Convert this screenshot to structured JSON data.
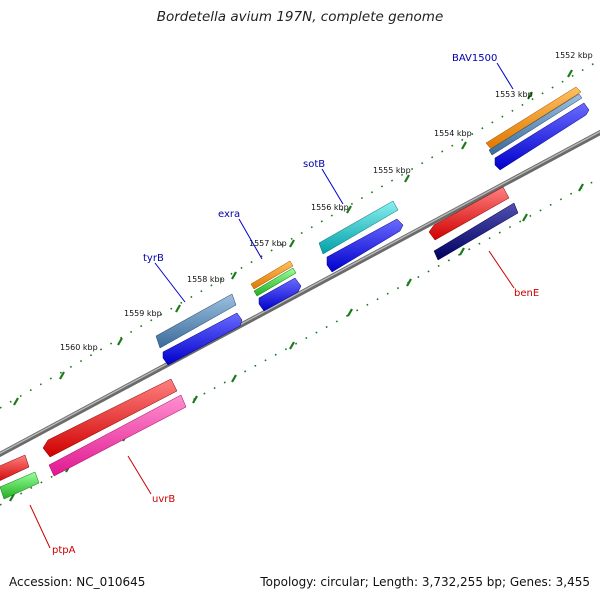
{
  "title": "Bordetella avium 197N, complete genome",
  "accession": "Accession: NC_010645",
  "summary": "Topology: circular; Length: 3,732,255 bp; Genes: 3,455",
  "ticks": [
    "1552 kbp",
    "1553 kbp",
    "1554 kbp",
    "1555 kbp",
    "1556 kbp",
    "1557 kbp",
    "1558 kbp",
    "1559 kbp",
    "1560 kbp"
  ],
  "genes": {
    "bav1500": {
      "name": "BAV1500",
      "color": "#0000aa"
    },
    "sotb": {
      "name": "sotB",
      "color": "#0000aa"
    },
    "exra": {
      "name": "exra",
      "color": "#0000aa"
    },
    "tyrb": {
      "name": "tyrB",
      "color": "#0000aa"
    },
    "bene": {
      "name": "benE",
      "color": "#cc0000"
    },
    "uvrb": {
      "name": "uvrB",
      "color": "#cc0000"
    },
    "ptpa": {
      "name": "ptpA",
      "color": "#cc0000"
    }
  },
  "colors": {
    "backbone": "#808080",
    "tick_marks": "#1a7a1a",
    "forward_cds": "#0000ff",
    "reverse_cds": "#ff0000"
  }
}
